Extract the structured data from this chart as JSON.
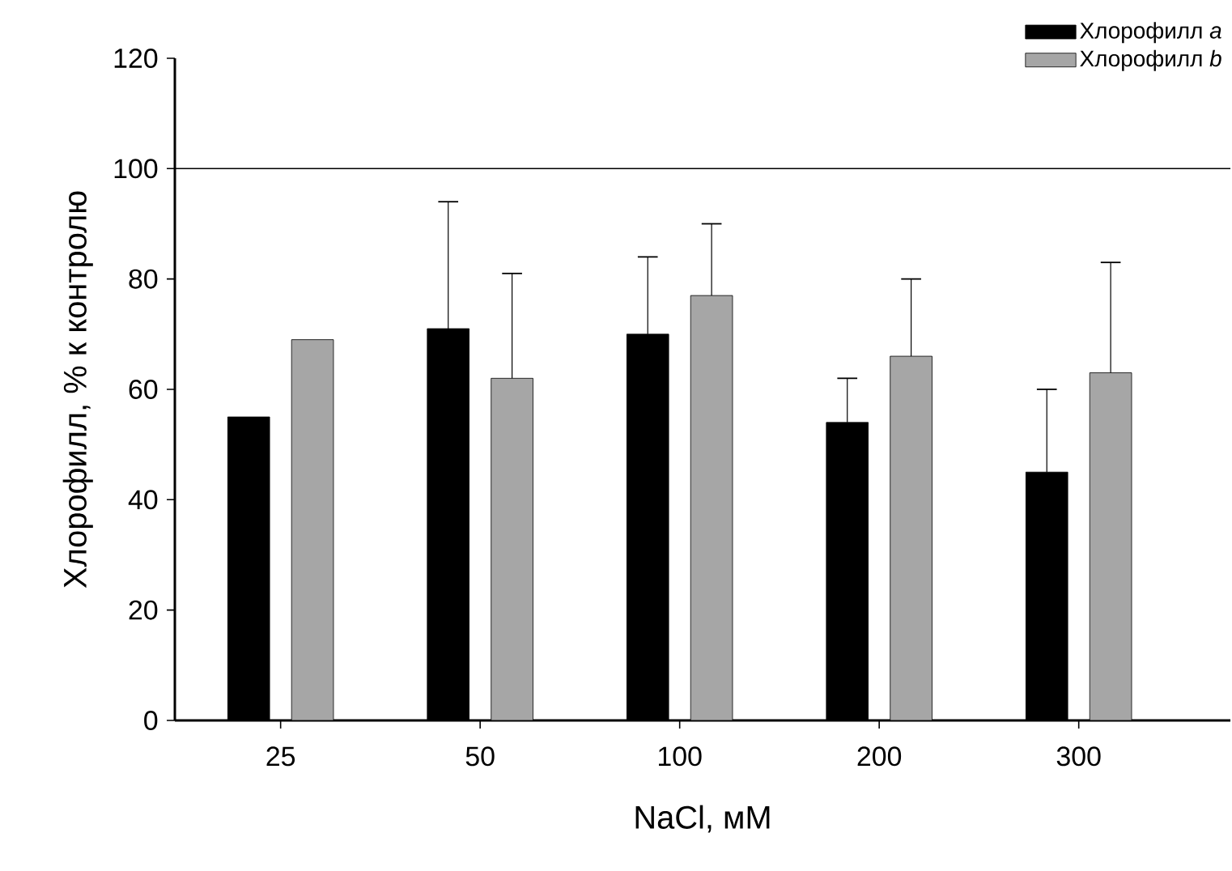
{
  "chart_data": {
    "type": "bar",
    "xlabel": "NaCl, мМ",
    "ylabel": "Хлорофилл, % к контролю",
    "categories": [
      "25",
      "50",
      "100",
      "200",
      "300"
    ],
    "series": [
      {
        "name": "Хлорофилл *a*",
        "color": "#000000",
        "values": [
          55,
          71,
          70,
          54,
          45
        ],
        "errors": [
          null,
          [
            71,
            94
          ],
          [
            70,
            84
          ],
          [
            54,
            62
          ],
          [
            45,
            60
          ]
        ]
      },
      {
        "name": "Хлорофилл *b*",
        "color": "#a6a6a6",
        "values": [
          69,
          62,
          77,
          66,
          63
        ],
        "errors": [
          null,
          [
            62,
            81
          ],
          [
            77,
            90
          ],
          [
            66,
            80
          ],
          [
            63,
            83
          ]
        ]
      }
    ],
    "ylim": [
      0,
      120
    ],
    "yticks": [
      0,
      20,
      40,
      60,
      80,
      100,
      120
    ],
    "ref_lines": [
      {
        "axis": "y",
        "value": 100,
        "color": "#000000"
      }
    ],
    "legend": "top right",
    "grid": false
  }
}
